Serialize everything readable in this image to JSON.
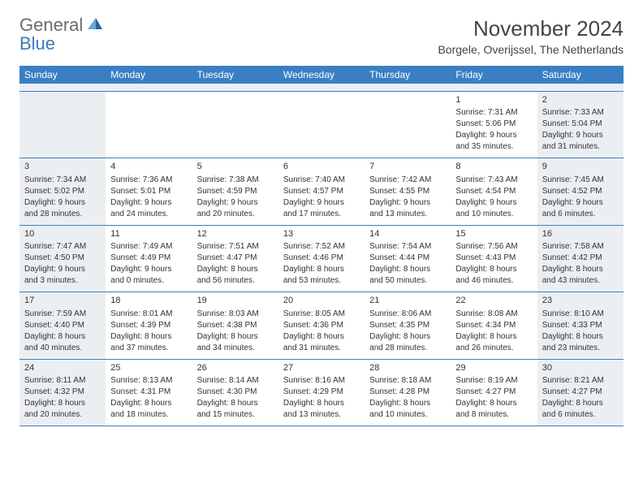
{
  "logo": {
    "general": "General",
    "blue": "Blue",
    "icon_color_light": "#6aa6d8",
    "icon_color_dark": "#2d5f9e"
  },
  "header": {
    "month_title": "November 2024",
    "location": "Borgele, Overijssel, The Netherlands"
  },
  "colors": {
    "header_bar": "#3a7fc4",
    "header_text": "#ffffff",
    "shaded_bg": "#eceff2",
    "divider": "#3a7fc4",
    "text": "#333333",
    "logo_gray": "#6b6b6b",
    "logo_blue": "#3a7ab8"
  },
  "weekdays": [
    "Sunday",
    "Monday",
    "Tuesday",
    "Wednesday",
    "Thursday",
    "Friday",
    "Saturday"
  ],
  "weeks": [
    [
      {
        "n": "",
        "shaded": true
      },
      {
        "n": "",
        "shaded": false
      },
      {
        "n": "",
        "shaded": false
      },
      {
        "n": "",
        "shaded": false
      },
      {
        "n": "",
        "shaded": false
      },
      {
        "n": "1",
        "shaded": false,
        "sunrise": "Sunrise: 7:31 AM",
        "sunset": "Sunset: 5:06 PM",
        "daylight1": "Daylight: 9 hours",
        "daylight2": "and 35 minutes."
      },
      {
        "n": "2",
        "shaded": true,
        "sunrise": "Sunrise: 7:33 AM",
        "sunset": "Sunset: 5:04 PM",
        "daylight1": "Daylight: 9 hours",
        "daylight2": "and 31 minutes."
      }
    ],
    [
      {
        "n": "3",
        "shaded": true,
        "sunrise": "Sunrise: 7:34 AM",
        "sunset": "Sunset: 5:02 PM",
        "daylight1": "Daylight: 9 hours",
        "daylight2": "and 28 minutes."
      },
      {
        "n": "4",
        "shaded": false,
        "sunrise": "Sunrise: 7:36 AM",
        "sunset": "Sunset: 5:01 PM",
        "daylight1": "Daylight: 9 hours",
        "daylight2": "and 24 minutes."
      },
      {
        "n": "5",
        "shaded": false,
        "sunrise": "Sunrise: 7:38 AM",
        "sunset": "Sunset: 4:59 PM",
        "daylight1": "Daylight: 9 hours",
        "daylight2": "and 20 minutes."
      },
      {
        "n": "6",
        "shaded": false,
        "sunrise": "Sunrise: 7:40 AM",
        "sunset": "Sunset: 4:57 PM",
        "daylight1": "Daylight: 9 hours",
        "daylight2": "and 17 minutes."
      },
      {
        "n": "7",
        "shaded": false,
        "sunrise": "Sunrise: 7:42 AM",
        "sunset": "Sunset: 4:55 PM",
        "daylight1": "Daylight: 9 hours",
        "daylight2": "and 13 minutes."
      },
      {
        "n": "8",
        "shaded": false,
        "sunrise": "Sunrise: 7:43 AM",
        "sunset": "Sunset: 4:54 PM",
        "daylight1": "Daylight: 9 hours",
        "daylight2": "and 10 minutes."
      },
      {
        "n": "9",
        "shaded": true,
        "sunrise": "Sunrise: 7:45 AM",
        "sunset": "Sunset: 4:52 PM",
        "daylight1": "Daylight: 9 hours",
        "daylight2": "and 6 minutes."
      }
    ],
    [
      {
        "n": "10",
        "shaded": true,
        "sunrise": "Sunrise: 7:47 AM",
        "sunset": "Sunset: 4:50 PM",
        "daylight1": "Daylight: 9 hours",
        "daylight2": "and 3 minutes."
      },
      {
        "n": "11",
        "shaded": false,
        "sunrise": "Sunrise: 7:49 AM",
        "sunset": "Sunset: 4:49 PM",
        "daylight1": "Daylight: 9 hours",
        "daylight2": "and 0 minutes."
      },
      {
        "n": "12",
        "shaded": false,
        "sunrise": "Sunrise: 7:51 AM",
        "sunset": "Sunset: 4:47 PM",
        "daylight1": "Daylight: 8 hours",
        "daylight2": "and 56 minutes."
      },
      {
        "n": "13",
        "shaded": false,
        "sunrise": "Sunrise: 7:52 AM",
        "sunset": "Sunset: 4:46 PM",
        "daylight1": "Daylight: 8 hours",
        "daylight2": "and 53 minutes."
      },
      {
        "n": "14",
        "shaded": false,
        "sunrise": "Sunrise: 7:54 AM",
        "sunset": "Sunset: 4:44 PM",
        "daylight1": "Daylight: 8 hours",
        "daylight2": "and 50 minutes."
      },
      {
        "n": "15",
        "shaded": false,
        "sunrise": "Sunrise: 7:56 AM",
        "sunset": "Sunset: 4:43 PM",
        "daylight1": "Daylight: 8 hours",
        "daylight2": "and 46 minutes."
      },
      {
        "n": "16",
        "shaded": true,
        "sunrise": "Sunrise: 7:58 AM",
        "sunset": "Sunset: 4:42 PM",
        "daylight1": "Daylight: 8 hours",
        "daylight2": "and 43 minutes."
      }
    ],
    [
      {
        "n": "17",
        "shaded": true,
        "sunrise": "Sunrise: 7:59 AM",
        "sunset": "Sunset: 4:40 PM",
        "daylight1": "Daylight: 8 hours",
        "daylight2": "and 40 minutes."
      },
      {
        "n": "18",
        "shaded": false,
        "sunrise": "Sunrise: 8:01 AM",
        "sunset": "Sunset: 4:39 PM",
        "daylight1": "Daylight: 8 hours",
        "daylight2": "and 37 minutes."
      },
      {
        "n": "19",
        "shaded": false,
        "sunrise": "Sunrise: 8:03 AM",
        "sunset": "Sunset: 4:38 PM",
        "daylight1": "Daylight: 8 hours",
        "daylight2": "and 34 minutes."
      },
      {
        "n": "20",
        "shaded": false,
        "sunrise": "Sunrise: 8:05 AM",
        "sunset": "Sunset: 4:36 PM",
        "daylight1": "Daylight: 8 hours",
        "daylight2": "and 31 minutes."
      },
      {
        "n": "21",
        "shaded": false,
        "sunrise": "Sunrise: 8:06 AM",
        "sunset": "Sunset: 4:35 PM",
        "daylight1": "Daylight: 8 hours",
        "daylight2": "and 28 minutes."
      },
      {
        "n": "22",
        "shaded": false,
        "sunrise": "Sunrise: 8:08 AM",
        "sunset": "Sunset: 4:34 PM",
        "daylight1": "Daylight: 8 hours",
        "daylight2": "and 26 minutes."
      },
      {
        "n": "23",
        "shaded": true,
        "sunrise": "Sunrise: 8:10 AM",
        "sunset": "Sunset: 4:33 PM",
        "daylight1": "Daylight: 8 hours",
        "daylight2": "and 23 minutes."
      }
    ],
    [
      {
        "n": "24",
        "shaded": true,
        "sunrise": "Sunrise: 8:11 AM",
        "sunset": "Sunset: 4:32 PM",
        "daylight1": "Daylight: 8 hours",
        "daylight2": "and 20 minutes."
      },
      {
        "n": "25",
        "shaded": false,
        "sunrise": "Sunrise: 8:13 AM",
        "sunset": "Sunset: 4:31 PM",
        "daylight1": "Daylight: 8 hours",
        "daylight2": "and 18 minutes."
      },
      {
        "n": "26",
        "shaded": false,
        "sunrise": "Sunrise: 8:14 AM",
        "sunset": "Sunset: 4:30 PM",
        "daylight1": "Daylight: 8 hours",
        "daylight2": "and 15 minutes."
      },
      {
        "n": "27",
        "shaded": false,
        "sunrise": "Sunrise: 8:16 AM",
        "sunset": "Sunset: 4:29 PM",
        "daylight1": "Daylight: 8 hours",
        "daylight2": "and 13 minutes."
      },
      {
        "n": "28",
        "shaded": false,
        "sunrise": "Sunrise: 8:18 AM",
        "sunset": "Sunset: 4:28 PM",
        "daylight1": "Daylight: 8 hours",
        "daylight2": "and 10 minutes."
      },
      {
        "n": "29",
        "shaded": false,
        "sunrise": "Sunrise: 8:19 AM",
        "sunset": "Sunset: 4:27 PM",
        "daylight1": "Daylight: 8 hours",
        "daylight2": "and 8 minutes."
      },
      {
        "n": "30",
        "shaded": true,
        "sunrise": "Sunrise: 8:21 AM",
        "sunset": "Sunset: 4:27 PM",
        "daylight1": "Daylight: 8 hours",
        "daylight2": "and 6 minutes."
      }
    ]
  ]
}
